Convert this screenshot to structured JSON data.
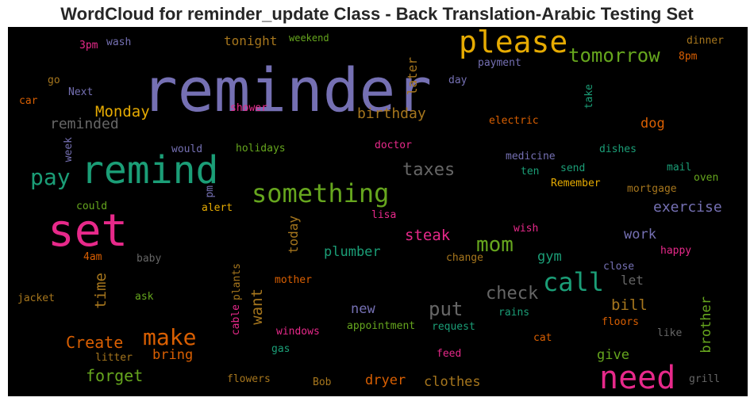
{
  "chart_data": {
    "type": "wordcloud",
    "title": "WordCloud for reminder_update Class - Back Translation-Arabic Testing Set",
    "background": "#000000",
    "words": [
      {
        "text": "reminder",
        "color": "#7570b3"
      },
      {
        "text": "remind",
        "color": "#1b9e77"
      },
      {
        "text": "set",
        "color": "#e7298a"
      },
      {
        "text": "please",
        "color": "#e6ab02"
      },
      {
        "text": "need",
        "color": "#e7298a"
      },
      {
        "text": "something",
        "color": "#66a61e"
      },
      {
        "text": "call",
        "color": "#1b9e77"
      },
      {
        "text": "tomorrow",
        "color": "#66a61e"
      },
      {
        "text": "make",
        "color": "#d95f02"
      },
      {
        "text": "pay",
        "color": "#1b9e77"
      },
      {
        "text": "check",
        "color": "#666666"
      },
      {
        "text": "mom",
        "color": "#66a61e"
      },
      {
        "text": "put",
        "color": "#666666"
      },
      {
        "text": "taxes",
        "color": "#666666"
      },
      {
        "text": "Create",
        "color": "#d95f02"
      },
      {
        "text": "forget",
        "color": "#66a61e"
      },
      {
        "text": "Monday",
        "color": "#e6ab02"
      },
      {
        "text": "reminded",
        "color": "#666666"
      },
      {
        "text": "birthday",
        "color": "#a6761d"
      },
      {
        "text": "exercise",
        "color": "#7570b3"
      },
      {
        "text": "steak",
        "color": "#e7298a"
      },
      {
        "text": "clothes",
        "color": "#a6761d"
      },
      {
        "text": "bill",
        "color": "#a6761d"
      },
      {
        "text": "time",
        "color": "#a6761d"
      },
      {
        "text": "want",
        "color": "#a6761d"
      },
      {
        "text": "brother",
        "color": "#66a61e"
      },
      {
        "text": "plumber",
        "color": "#1b9e77"
      },
      {
        "text": "work",
        "color": "#7570b3"
      },
      {
        "text": "gym",
        "color": "#1b9e77"
      },
      {
        "text": "dryer",
        "color": "#d95f02"
      },
      {
        "text": "give",
        "color": "#66a61e"
      },
      {
        "text": "bring",
        "color": "#d95f02"
      },
      {
        "text": "new",
        "color": "#7570b3"
      },
      {
        "text": "dog",
        "color": "#d95f02"
      },
      {
        "text": "tonight",
        "color": "#a6761d"
      },
      {
        "text": "today",
        "color": "#a6761d"
      },
      {
        "text": "let",
        "color": "#666666"
      },
      {
        "text": "later",
        "color": "#a6761d"
      },
      {
        "text": "weekend",
        "color": "#66a61e"
      },
      {
        "text": "wash",
        "color": "#7570b3"
      },
      {
        "text": "3pm",
        "color": "#e7298a"
      },
      {
        "text": "dinner",
        "color": "#a6761d"
      },
      {
        "text": "payment",
        "color": "#7570b3"
      },
      {
        "text": "8pm",
        "color": "#d95f02"
      },
      {
        "text": "go",
        "color": "#a6761d"
      },
      {
        "text": "Next",
        "color": "#7570b3"
      },
      {
        "text": "car",
        "color": "#d95f02"
      },
      {
        "text": "day",
        "color": "#7570b3"
      },
      {
        "text": "take",
        "color": "#1b9e77"
      },
      {
        "text": "shower",
        "color": "#e7298a"
      },
      {
        "text": "electric",
        "color": "#d95f02"
      },
      {
        "text": "week",
        "color": "#7570b3"
      },
      {
        "text": "would",
        "color": "#7570b3"
      },
      {
        "text": "holidays",
        "color": "#66a61e"
      },
      {
        "text": "doctor",
        "color": "#e7298a"
      },
      {
        "text": "medicine",
        "color": "#7570b3"
      },
      {
        "text": "dishes",
        "color": "#1b9e77"
      },
      {
        "text": "ten",
        "color": "#1b9e77"
      },
      {
        "text": "send",
        "color": "#1b9e77"
      },
      {
        "text": "mail",
        "color": "#1b9e77"
      },
      {
        "text": "oven",
        "color": "#66a61e"
      },
      {
        "text": "Remember",
        "color": "#e6ab02"
      },
      {
        "text": "mortgage",
        "color": "#a6761d"
      },
      {
        "text": "could",
        "color": "#66a61e"
      },
      {
        "text": "pm",
        "color": "#7570b3"
      },
      {
        "text": "alert",
        "color": "#e6ab02"
      },
      {
        "text": "lisa",
        "color": "#e7298a"
      },
      {
        "text": "wish",
        "color": "#e7298a"
      },
      {
        "text": "4am",
        "color": "#d95f02"
      },
      {
        "text": "baby",
        "color": "#666666"
      },
      {
        "text": "change",
        "color": "#a6761d"
      },
      {
        "text": "happy",
        "color": "#e7298a"
      },
      {
        "text": "close",
        "color": "#7570b3"
      },
      {
        "text": "plants",
        "color": "#a6761d"
      },
      {
        "text": "mother",
        "color": "#d95f02"
      },
      {
        "text": "jacket",
        "color": "#a6761d"
      },
      {
        "text": "ask",
        "color": "#66a61e"
      },
      {
        "text": "cable",
        "color": "#e7298a"
      },
      {
        "text": "windows",
        "color": "#e7298a"
      },
      {
        "text": "appointment",
        "color": "#66a61e"
      },
      {
        "text": "request",
        "color": "#1b9e77"
      },
      {
        "text": "rains",
        "color": "#1b9e77"
      },
      {
        "text": "floors",
        "color": "#d95f02"
      },
      {
        "text": "like",
        "color": "#666666"
      },
      {
        "text": "gas",
        "color": "#1b9e77"
      },
      {
        "text": "cat",
        "color": "#d95f02"
      },
      {
        "text": "litter",
        "color": "#a6761d"
      },
      {
        "text": "feed",
        "color": "#e7298a"
      },
      {
        "text": "flowers",
        "color": "#a6761d"
      },
      {
        "text": "Bob",
        "color": "#a6761d"
      },
      {
        "text": "grill",
        "color": "#666666"
      }
    ]
  }
}
